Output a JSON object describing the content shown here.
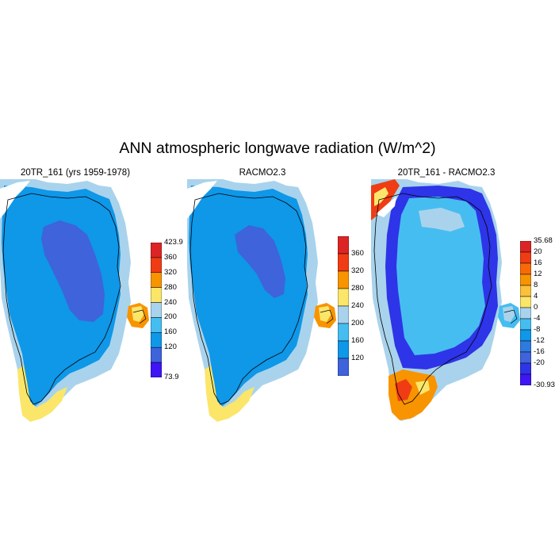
{
  "title": "ANN atmospheric longwave radiation (W/m^2)",
  "panels": [
    {
      "label": "20TR_161 (yrs 1959-1978)",
      "kind": "model",
      "colorbar": {
        "labels": [
          "423.9",
          "360",
          "320",
          "280",
          "240",
          "200",
          "160",
          "120",
          "73.9"
        ],
        "colors": [
          "#dd2424",
          "#f03c14",
          "#f89400",
          "#fbe66a",
          "#a9d3ec",
          "#46bdf1",
          "#0f97e8",
          "#3e63db",
          "#3f14f5"
        ]
      }
    },
    {
      "label": "RACMO2.3",
      "kind": "model",
      "colorbar": {
        "labels": [
          "360",
          "320",
          "280",
          "240",
          "200",
          "160",
          "120"
        ],
        "colors": [
          "#dd2424",
          "#f03c14",
          "#f89400",
          "#fbe66a",
          "#a9d3ec",
          "#46bdf1",
          "#0f97e8",
          "#3e63db"
        ]
      }
    },
    {
      "label": "20TR_161 - RACMO2.3",
      "kind": "diff",
      "colorbar": {
        "labels": [
          "35.68",
          "20",
          "16",
          "12",
          "8",
          "4",
          "0",
          "-4",
          "-8",
          "-12",
          "-16",
          "-20",
          "-30.93"
        ],
        "colors": [
          "#dd2424",
          "#f03c14",
          "#f86a08",
          "#f89400",
          "#fbc13a",
          "#fbe66a",
          "#a9d3ec",
          "#46bdf1",
          "#0f97e8",
          "#2f7ae0",
          "#3e63db",
          "#2e34e8",
          "#3f14f5"
        ]
      }
    }
  ],
  "colors": {
    "interior_model": "#3e63db",
    "ice_main": "#0f97e8",
    "margin_light": "#a9d3ec",
    "margin_yellow": "#fbe66a",
    "diff_main": "#46bdf1",
    "diff_negative": "#2e34e8",
    "diff_positive": "#f89400",
    "coastline": "#000000"
  }
}
